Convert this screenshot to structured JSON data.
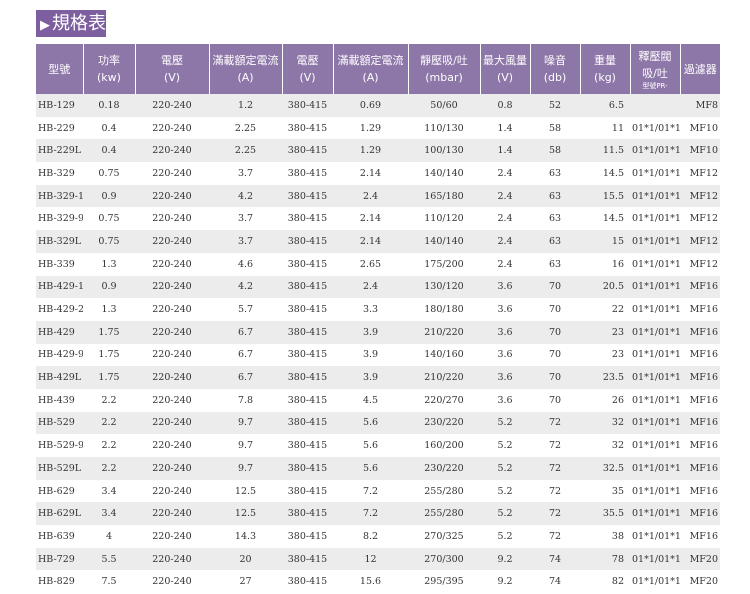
{
  "header": {
    "title": "規格表"
  },
  "table": {
    "columns": [
      [
        "型號"
      ],
      [
        "功率",
        "(kw)"
      ],
      [
        "電壓",
        "(V)"
      ],
      [
        "滿載額定電流",
        "(A)"
      ],
      [
        "電壓",
        "(V)"
      ],
      [
        "滿載額定電流",
        "(A)"
      ],
      [
        "靜壓吸/吐",
        "(mbar)"
      ],
      [
        "最大風量",
        "(V)"
      ],
      [
        "噪音",
        "(db)"
      ],
      [
        "重量",
        "(kg)"
      ],
      [
        "釋壓閥",
        "吸/吐",
        "型號PR-"
      ],
      [
        "過濾器"
      ]
    ],
    "rows": [
      [
        "HB-129",
        "0.18",
        "220-240",
        "1.2",
        "380-415",
        "0.69",
        "50/60",
        "0.8",
        "52",
        "6.5",
        null,
        "MF8"
      ],
      [
        "HB-229",
        "0.4",
        "220-240",
        "2.25",
        "380-415",
        "1.29",
        "110/130",
        "1.4",
        "58",
        "11",
        "01*1/01*1",
        "MF10"
      ],
      [
        "HB-229L",
        "0.4",
        "220-240",
        "2.25",
        "380-415",
        "1.29",
        "100/130",
        "1.4",
        "58",
        "11.5",
        "01*1/01*1",
        "MF10"
      ],
      [
        "HB-329",
        "0.75",
        "220-240",
        "3.7",
        "380-415",
        "2.14",
        "140/140",
        "2.4",
        "63",
        "14.5",
        "01*1/01*1",
        "MF12"
      ],
      [
        "HB-329-1",
        "0.9",
        "220-240",
        "4.2",
        "380-415",
        "2.4",
        "165/180",
        "2.4",
        "63",
        "15.5",
        "01*1/01*1",
        "MF12"
      ],
      [
        "HB-329-9",
        "0.75",
        "220-240",
        "3.7",
        "380-415",
        "2.14",
        "110/120",
        "2.4",
        "63",
        "14.5",
        "01*1/01*1",
        "MF12"
      ],
      [
        "HB-329L",
        "0.75",
        "220-240",
        "3.7",
        "380-415",
        "2.14",
        "140/140",
        "2.4",
        "63",
        "15",
        "01*1/01*1",
        "MF12"
      ],
      [
        "HB-339",
        "1.3",
        "220-240",
        "4.6",
        "380-415",
        "2.65",
        "175/200",
        "2.4",
        "63",
        "16",
        "01*1/01*1",
        "MF12"
      ],
      [
        "HB-429-1",
        "0.9",
        "220-240",
        "4.2",
        "380-415",
        "2.4",
        "130/120",
        "3.6",
        "70",
        "20.5",
        "01*1/01*1",
        "MF16"
      ],
      [
        "HB-429-2",
        "1.3",
        "220-240",
        "5.7",
        "380-415",
        "3.3",
        "180/180",
        "3.6",
        "70",
        "22",
        "01*1/01*1",
        "MF16"
      ],
      [
        "HB-429",
        "1.75",
        "220-240",
        "6.7",
        "380-415",
        "3.9",
        "210/220",
        "3.6",
        "70",
        "23",
        "01*1/01*1",
        "MF16"
      ],
      [
        "HB-429-9",
        "1.75",
        "220-240",
        "6.7",
        "380-415",
        "3.9",
        "140/160",
        "3.6",
        "70",
        "23",
        "01*1/01*1",
        "MF16"
      ],
      [
        "HB-429L",
        "1.75",
        "220-240",
        "6.7",
        "380-415",
        "3.9",
        "210/220",
        "3.6",
        "70",
        "23.5",
        "01*1/01*1",
        "MF16"
      ],
      [
        "HB-439",
        "2.2",
        "220-240",
        "7.8",
        "380-415",
        "4.5",
        "220/270",
        "3.6",
        "70",
        "26",
        "01*1/01*1",
        "MF16"
      ],
      [
        "HB-529",
        "2.2",
        "220-240",
        "9.7",
        "380-415",
        "5.6",
        "230/220",
        "5.2",
        "72",
        "32",
        "01*1/01*1",
        "MF16"
      ],
      [
        "HB-529-9",
        "2.2",
        "220-240",
        "9.7",
        "380-415",
        "5.6",
        "160/200",
        "5.2",
        "72",
        "32",
        "01*1/01*1",
        "MF16"
      ],
      [
        "HB-529L",
        "2.2",
        "220-240",
        "9.7",
        "380-415",
        "5.6",
        "230/220",
        "5.2",
        "72",
        "32.5",
        "01*1/01*1",
        "MF16"
      ],
      [
        "HB-629",
        "3.4",
        "220-240",
        "12.5",
        "380-415",
        "7.2",
        "255/280",
        "5.2",
        "72",
        "35",
        "01*1/01*1",
        "MF16"
      ],
      [
        "HB-629L",
        "3.4",
        "220-240",
        "12.5",
        "380-415",
        "7.2",
        "255/280",
        "5.2",
        "72",
        "35.5",
        "01*1/01*1",
        "MF16"
      ],
      [
        "HB-639",
        "4",
        "220-240",
        "14.3",
        "380-415",
        "8.2",
        "270/325",
        "5.2",
        "72",
        "38",
        "01*1/01*1",
        "MF16"
      ],
      [
        "HB-729",
        "5.5",
        "220-240",
        "20",
        "380-415",
        "12",
        "270/300",
        "9.2",
        "74",
        "78",
        "01*1/01*1",
        "MF20"
      ],
      [
        "HB-829",
        "7.5",
        "220-240",
        "27",
        "380-415",
        "15.6",
        "295/395",
        "9.2",
        "74",
        "82",
        "01*1/01*1",
        "MF20"
      ]
    ]
  }
}
